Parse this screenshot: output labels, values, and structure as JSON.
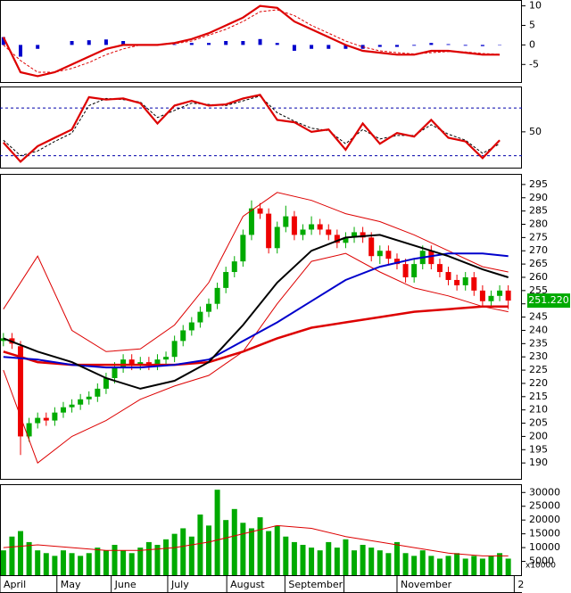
{
  "chart_data": [
    {
      "type": "line",
      "xlim": [
        -0.4,
        60.6
      ],
      "ylim": [
        -9.5,
        11.5
      ],
      "yticks": [
        -5,
        0,
        5,
        10
      ],
      "x": [
        0,
        2,
        4,
        6,
        8,
        10,
        12,
        14,
        16,
        18,
        20,
        22,
        24,
        26,
        28,
        30,
        32,
        34,
        36,
        38,
        40,
        42,
        44,
        46,
        48,
        50,
        52,
        54,
        56,
        58
      ],
      "series": [
        {
          "color": "#0000cc",
          "style": "bar",
          "values": [
            2,
            -3,
            -1,
            0,
            1,
            1.2,
            1.4,
            1,
            0.2,
            0,
            0.2,
            0.5,
            0.5,
            1,
            1,
            1.5,
            0.5,
            -1.5,
            -1,
            -1,
            -1,
            -1,
            -0.5,
            -0.5,
            -0.2,
            0.5,
            0.2,
            -0.2,
            -0.3,
            -0.1
          ]
        },
        {
          "color": "#dd0000",
          "style": "dashed",
          "values": [
            0,
            -4,
            -7,
            -7,
            -6,
            -4.5,
            -2.5,
            -1,
            0,
            0,
            0.3,
            1,
            2.5,
            4,
            6,
            8.5,
            9,
            7.5,
            5,
            3,
            1,
            -0.5,
            -1.5,
            -2,
            -2.3,
            -2,
            -1.7,
            -1.8,
            -2.2,
            -2.4
          ]
        },
        {
          "color": "#dd0000",
          "style": "solid",
          "values": [
            2,
            -7,
            -8,
            -7,
            -5,
            -3,
            -1,
            0,
            0,
            0,
            0.5,
            1.5,
            3,
            5,
            7,
            10,
            9.5,
            6,
            4,
            2,
            0,
            -1.5,
            -2,
            -2.5,
            -2.5,
            -1.5,
            -1.5,
            -2,
            -2.5,
            -2.5
          ]
        }
      ]
    },
    {
      "type": "line",
      "xlim": [
        -0.4,
        60.6
      ],
      "ylim": [
        20,
        88
      ],
      "yticks": [
        50
      ],
      "levels": [
        30,
        70
      ],
      "level_color": "#0000aa",
      "x": [
        0,
        2,
        4,
        6,
        8,
        10,
        12,
        14,
        16,
        18,
        20,
        22,
        24,
        26,
        28,
        30,
        32,
        34,
        36,
        38,
        40,
        42,
        44,
        46,
        48,
        50,
        52,
        54,
        56,
        58
      ],
      "series": [
        {
          "color": "#000000",
          "style": "dashed",
          "values": [
            43,
            30,
            34,
            42,
            49,
            72,
            78,
            77,
            75,
            62,
            68,
            74,
            73,
            72,
            76,
            80,
            66,
            59,
            53,
            51,
            40,
            52,
            44,
            47,
            47,
            56,
            48,
            43,
            32,
            40
          ]
        },
        {
          "color": "#dd0000",
          "style": "solid",
          "values": [
            41,
            25,
            38,
            45,
            52,
            79,
            77,
            78,
            74,
            57,
            72,
            76,
            72,
            73,
            78,
            81,
            60,
            58,
            50,
            52,
            35,
            57,
            40,
            49,
            46,
            60,
            45,
            42,
            28,
            43
          ]
        }
      ]
    },
    {
      "type": "candlestick",
      "xlim": [
        -0.4,
        60.6
      ],
      "ylim": [
        184,
        299
      ],
      "yticks": [
        190,
        195,
        200,
        205,
        210,
        215,
        220,
        225,
        230,
        235,
        240,
        245,
        250,
        255,
        260,
        265,
        270,
        275,
        280,
        285,
        290,
        295
      ],
      "up_color": "#00aa00",
      "down_color": "#ee0000",
      "open": [
        236,
        237,
        234,
        200,
        205,
        207,
        206,
        209,
        211,
        212,
        214,
        215,
        218,
        222,
        226,
        229,
        227,
        228,
        227,
        229,
        230,
        236,
        240,
        243,
        247,
        250,
        256,
        262,
        266,
        276,
        286,
        284,
        271,
        279,
        283,
        276,
        278,
        280,
        278,
        276,
        273,
        275,
        277,
        275,
        268,
        270,
        267,
        265,
        260,
        265,
        270,
        265,
        262,
        259,
        257,
        260,
        255,
        251,
        253,
        255
      ],
      "high": [
        239,
        239,
        236,
        207,
        209,
        209,
        211,
        213,
        214,
        216,
        217,
        220,
        224,
        228,
        231,
        231,
        230,
        230,
        231,
        232,
        238,
        242,
        245,
        249,
        252,
        258,
        264,
        268,
        278,
        289,
        288,
        286,
        281,
        287,
        285,
        280,
        283,
        282,
        280,
        278,
        277,
        279,
        279,
        277,
        272,
        272,
        269,
        267,
        267,
        272,
        272,
        267,
        264,
        261,
        262,
        262,
        257,
        255,
        257,
        257
      ],
      "low": [
        234,
        233,
        193,
        198,
        203,
        204,
        204,
        207,
        209,
        210,
        212,
        213,
        216,
        220,
        224,
        225,
        225,
        225,
        225,
        227,
        228,
        234,
        238,
        241,
        245,
        248,
        254,
        260,
        264,
        274,
        282,
        269,
        269,
        277,
        274,
        274,
        276,
        276,
        274,
        271,
        271,
        273,
        273,
        266,
        265,
        265,
        263,
        258,
        258,
        263,
        263,
        260,
        257,
        255,
        255,
        253,
        249,
        249,
        251,
        248
      ],
      "close": [
        237,
        235,
        200,
        205,
        207,
        206,
        209,
        211,
        212,
        214,
        215,
        218,
        222,
        226,
        229,
        227,
        228,
        227,
        229,
        230,
        236,
        240,
        243,
        247,
        250,
        256,
        262,
        266,
        276,
        286,
        284,
        271,
        279,
        283,
        276,
        278,
        280,
        278,
        276,
        273,
        275,
        277,
        275,
        268,
        270,
        267,
        265,
        260,
        265,
        270,
        265,
        262,
        259,
        257,
        260,
        255,
        251,
        253,
        255,
        251.22
      ],
      "last_price": {
        "value": 251.22,
        "label": "251.220"
      },
      "overlays": {
        "x": [
          0,
          4,
          8,
          12,
          16,
          20,
          24,
          28,
          32,
          36,
          40,
          44,
          48,
          52,
          56,
          59
        ],
        "series": [
          {
            "color": "#dd0000",
            "width": 1,
            "values": [
              248,
              268,
              240,
              232,
              233,
              242,
              258,
              283,
              292,
              289,
              284,
              281,
              276,
              270,
              264,
              262
            ]
          },
          {
            "color": "#dd0000",
            "width": 1,
            "values": [
              225,
              190,
              200,
              206,
              214,
              219,
              223,
              232,
              250,
              266,
              269,
              262,
              256,
              253,
              249,
              247
            ]
          },
          {
            "color": "#dd0000",
            "width": 2.5,
            "values": [
              232,
              228,
              227,
              227,
              227,
              227,
              228,
              232,
              237,
              241,
              243,
              245,
              247,
              248,
              249,
              249
            ]
          },
          {
            "color": "#0000cc",
            "width": 2,
            "values": [
              230,
              229,
              227,
              226,
              226,
              227,
              229,
              236,
              243,
              251,
              259,
              264,
              267,
              269,
              269,
              268
            ]
          },
          {
            "color": "#000000",
            "width": 2,
            "values": [
              237,
              232,
              228,
              222,
              218,
              221,
              228,
              242,
              258,
              270,
              275,
              276,
              272,
              268,
              263,
              260
            ]
          }
        ]
      }
    },
    {
      "type": "bar",
      "xlim": [
        -0.4,
        60.6
      ],
      "ylim": [
        0,
        33000
      ],
      "color": "#00aa00",
      "yticks": [
        5000,
        10000,
        15000,
        20000,
        25000,
        30000
      ],
      "unit_label": "x10000",
      "values": [
        9000,
        14000,
        16000,
        12000,
        9000,
        8000,
        7000,
        9000,
        8000,
        7000,
        8000,
        10000,
        9000,
        11000,
        9000,
        8000,
        10000,
        12000,
        11000,
        13000,
        15000,
        17000,
        14000,
        22000,
        18000,
        31000,
        20000,
        24000,
        19000,
        17000,
        21000,
        16000,
        18000,
        14000,
        12000,
        11000,
        10000,
        9000,
        12000,
        10000,
        13000,
        9000,
        11000,
        10000,
        9000,
        8000,
        12000,
        8000,
        7000,
        9000,
        7000,
        6000,
        7000,
        8000,
        6000,
        7000,
        6000,
        7000,
        8000,
        6000
      ],
      "overlay": {
        "color": "#dd0000",
        "x": [
          0,
          4,
          8,
          12,
          16,
          20,
          24,
          28,
          32,
          36,
          40,
          44,
          48,
          52,
          56,
          59
        ],
        "values": [
          10000,
          11000,
          10000,
          9000,
          9000,
          10000,
          12000,
          15000,
          18000,
          17000,
          14000,
          12000,
          10000,
          8000,
          7000,
          7000
        ]
      },
      "xticks": [
        {
          "value": -0.4,
          "label": "April"
        },
        {
          "value": 6.25,
          "label": "May"
        },
        {
          "value": 12.6,
          "label": "June"
        },
        {
          "value": 19.2,
          "label": "July"
        },
        {
          "value": 26.1,
          "label": "August"
        },
        {
          "value": 32.9,
          "label": "September"
        },
        {
          "value": 39.8,
          "label": null
        },
        {
          "value": 46.0,
          "label": "November"
        },
        {
          "value": 59.7,
          "label": "2"
        }
      ]
    }
  ]
}
